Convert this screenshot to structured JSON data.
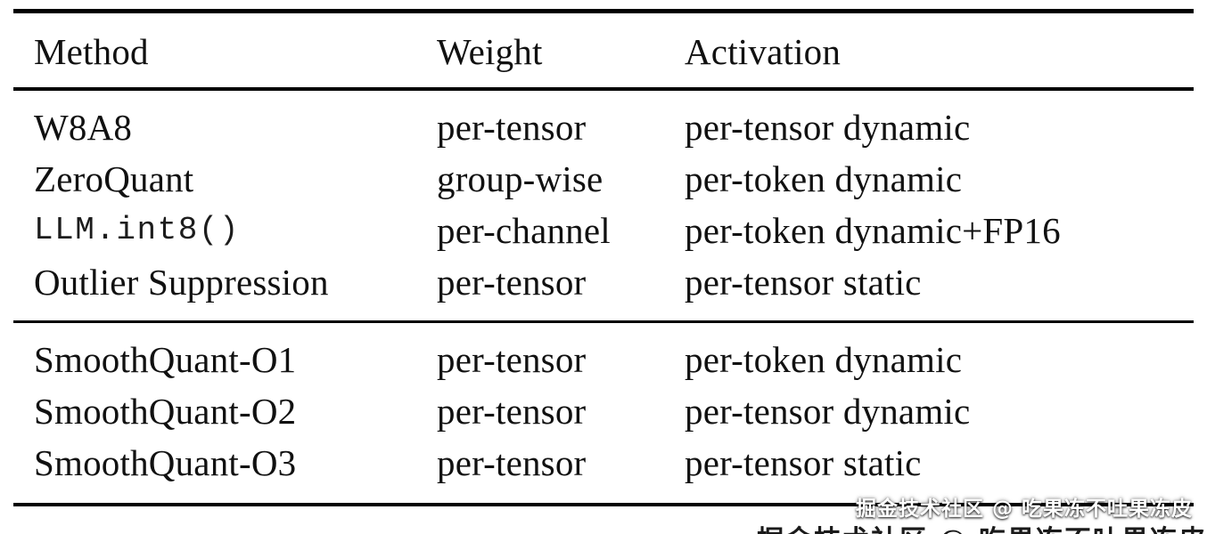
{
  "table": {
    "columns": [
      "Method",
      "Weight",
      "Activation"
    ],
    "groups": [
      {
        "rows": [
          {
            "method": "W8A8",
            "weight": "per-tensor",
            "activation": "per-tensor dynamic"
          },
          {
            "method": "ZeroQuant",
            "weight": "group-wise",
            "activation": "per-token dynamic"
          },
          {
            "method": "LLM.int8()",
            "weight": "per-channel",
            "activation": "per-token dynamic+FP16"
          },
          {
            "method": "Outlier Suppression",
            "weight": "per-tensor",
            "activation": "per-tensor static"
          }
        ]
      },
      {
        "rows": [
          {
            "method": "SmoothQuant-O1",
            "weight": "per-tensor",
            "activation": "per-token dynamic"
          },
          {
            "method": "SmoothQuant-O2",
            "weight": "per-tensor",
            "activation": "per-tensor dynamic"
          },
          {
            "method": "SmoothQuant-O3",
            "weight": "per-tensor",
            "activation": "per-tensor static"
          }
        ]
      }
    ]
  },
  "watermark": {
    "text": "掘金技术社区 @ 吃果冻不吐果冻皮"
  },
  "colors": {
    "background": "#ffffff",
    "text": "#111111",
    "rule": "#000000",
    "watermark_text": "#ffffff"
  }
}
